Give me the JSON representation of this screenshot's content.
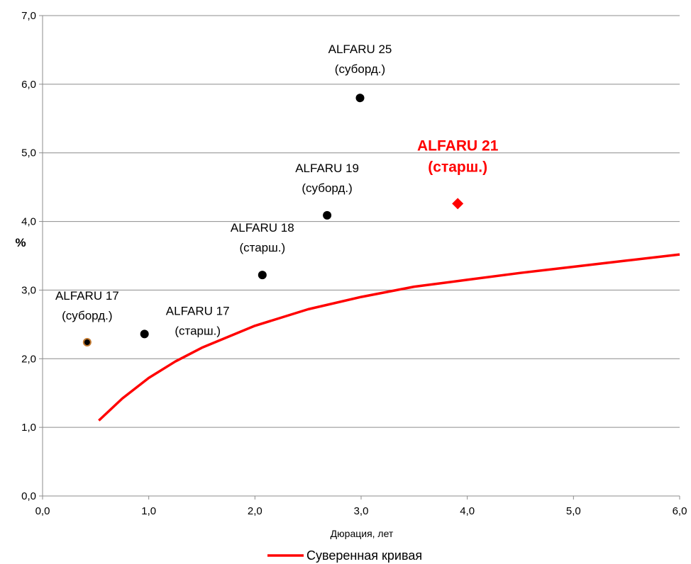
{
  "chart_data": {
    "type": "scatter",
    "xlabel": "Дюрация, лет",
    "ylabel": "%",
    "xlim": [
      0,
      6
    ],
    "ylim": [
      0,
      7
    ],
    "xticks": [
      "0,0",
      "1,0",
      "2,0",
      "3,0",
      "4,0",
      "5,0",
      "6,0"
    ],
    "yticks": [
      "0,0",
      "1,0",
      "2,0",
      "3,0",
      "4,0",
      "5,0",
      "6,0",
      "7,0"
    ],
    "grid": "horizontal",
    "legend_position": "bottom",
    "colors": {
      "curve": "#ff0000",
      "point": "#000000",
      "highlight": "#ff0000",
      "orange_edge": "#c07830"
    },
    "points": [
      {
        "label": [
          "ALFARU 17",
          "(суборд.)"
        ],
        "x": 0.42,
        "y": 2.24,
        "marker": "circle-orange"
      },
      {
        "label": [
          "ALFARU 17",
          "(старш.)"
        ],
        "x": 0.96,
        "y": 2.36,
        "marker": "circle"
      },
      {
        "label": [
          "ALFARU 18",
          "(старш.)"
        ],
        "x": 2.07,
        "y": 3.22,
        "marker": "circle"
      },
      {
        "label": [
          "ALFARU 19",
          "(суборд.)"
        ],
        "x": 2.68,
        "y": 4.09,
        "marker": "circle"
      },
      {
        "label": [
          "ALFARU 25",
          "(суборд.)"
        ],
        "x": 2.99,
        "y": 5.8,
        "marker": "circle"
      },
      {
        "label": [
          "ALFARU 21",
          "(старш.)"
        ],
        "x": 3.91,
        "y": 4.26,
        "marker": "diamond-red"
      }
    ],
    "series": [
      {
        "name": "Суверенная кривая",
        "x": [
          0.53,
          0.75,
          1.0,
          1.25,
          1.5,
          2.0,
          2.5,
          3.0,
          3.5,
          4.0,
          4.5,
          5.0,
          5.5,
          6.0
        ],
        "y": [
          1.1,
          1.42,
          1.72,
          1.96,
          2.16,
          2.48,
          2.72,
          2.9,
          3.05,
          3.15,
          3.25,
          3.34,
          3.43,
          3.52
        ]
      }
    ]
  }
}
